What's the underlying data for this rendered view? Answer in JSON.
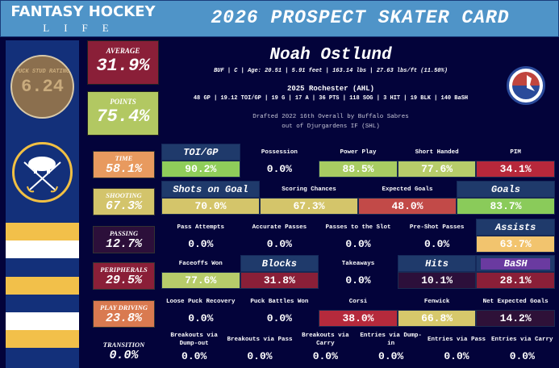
{
  "header": {
    "logo_line1": "FANTASY HOCKEY",
    "logo_line2": "LIFE",
    "title": "2026 PROSPECT SKATER CARD"
  },
  "rating": {
    "label": "PUCK STUD RATING",
    "value": "6.24"
  },
  "summary": {
    "average_label": "AVERAGE",
    "average": "31.9%",
    "points_label": "POINTS",
    "points": "75.4%"
  },
  "player": {
    "name": "Noah Ostlund",
    "bio": "BUF | C | Age: 20.51 | 5.91 feet | 163.14 lbs | 27.63 lbs/ft  (11.50%)",
    "season": "2025 Rochester (AHL)",
    "stats": "48 GP | 19.12 TOI/GP | 19 G | 17 A | 36 PTS | 118 SOG | 3 HIT | 19 BLK | 140 BaSH",
    "draft1": "Drafted 2022 16th Overall by Buffalo Sabres",
    "draft2": "out of Djurgardens IF (SHL)"
  },
  "logos": {
    "team": "Buffalo Sabres",
    "league": "AHL"
  },
  "colors": {
    "header": "#4f94c8",
    "bg": "#03033a",
    "panel": "#13307a",
    "gold": "#f2c04a"
  },
  "rows": [
    {
      "category": "TIME",
      "value": "58.1%",
      "color": "#e89a5f",
      "cells": [
        {
          "label": "TOI/GP",
          "hd": true,
          "value": "90.2%",
          "color": "#8fcd5a"
        },
        {
          "label": "Possession",
          "value": "0.0%"
        },
        {
          "label": "Power Play",
          "value": "88.5%",
          "color": "#a8cc62"
        },
        {
          "label": "Short Handed",
          "value": "77.6%",
          "color": "#b7cc6a"
        },
        {
          "label": "PIM",
          "value": "34.1%",
          "color": "#b7283b"
        }
      ]
    },
    {
      "category": "SHOOTING",
      "value": "67.3%",
      "color": "#d3c46b",
      "cells": [
        {
          "label": "Shots on Goal",
          "hd": true,
          "value": "70.0%",
          "color": "#d4c56a"
        },
        {
          "label": "Scoring Chances",
          "value": "67.3%",
          "color": "#d4c56a"
        },
        {
          "label": "Expected Goals",
          "value": "48.0%",
          "color": "#c24a48"
        },
        {
          "label": "Goals",
          "hd": true,
          "value": "83.7%",
          "color": "#8acb5a"
        }
      ]
    },
    {
      "category": "PASSING",
      "value": "12.7%",
      "color": "#2c0f3a",
      "cells": [
        {
          "label": "Pass Attempts",
          "value": "0.0%"
        },
        {
          "label": "Accurate Passes",
          "value": "0.0%"
        },
        {
          "label": "Passes to the Slot",
          "value": "0.0%"
        },
        {
          "label": "Pre-Shot Passes",
          "value": "0.0%"
        },
        {
          "label": "Assists",
          "hd": true,
          "value": "63.7%",
          "color": "#f2c46e"
        }
      ]
    },
    {
      "category": "PERIPHERALS",
      "value": "29.5%",
      "color": "#8a1f38",
      "cells": [
        {
          "label": "Faceoffs Won",
          "value": "77.6%",
          "color": "#b7cc6a"
        },
        {
          "label": "Blocks",
          "hd": true,
          "value": "31.8%",
          "color": "#8a1f38"
        },
        {
          "label": "Takeaways",
          "value": "0.0%"
        },
        {
          "label": "Hits",
          "hd": true,
          "value": "10.1%",
          "color": "#2c0f3a"
        },
        {
          "label": "BaSH",
          "hd": true,
          "bash": true,
          "value": "28.1%",
          "color": "#8a1f38"
        }
      ]
    },
    {
      "category": "PLAY DRIVING",
      "value": "23.8%",
      "color": "#d97a50",
      "cells": [
        {
          "label": "Loose Puck Recovery",
          "value": "0.0%"
        },
        {
          "label": "Puck Battles Won",
          "value": "0.0%"
        },
        {
          "label": "Corsi",
          "value": "38.0%",
          "color": "#b52a3c"
        },
        {
          "label": "Fenwick",
          "value": "66.8%",
          "color": "#d6c86b"
        },
        {
          "label": "Net Expected Goals",
          "value": "14.2%",
          "color": "#2e1138"
        }
      ]
    },
    {
      "category": "TRANSITION",
      "value": "0.0%",
      "cells": [
        {
          "label": "Breakouts via Dump-out",
          "value": "0.0%"
        },
        {
          "label": "Breakouts via Pass",
          "value": "0.0%"
        },
        {
          "label": "Breakouts via Carry",
          "value": "0.0%"
        },
        {
          "label": "Entries via Dump-in",
          "value": "0.0%"
        },
        {
          "label": "Entries via Pass",
          "value": "0.0%"
        },
        {
          "label": "Entries via Carry",
          "value": "0.0%"
        }
      ]
    }
  ]
}
